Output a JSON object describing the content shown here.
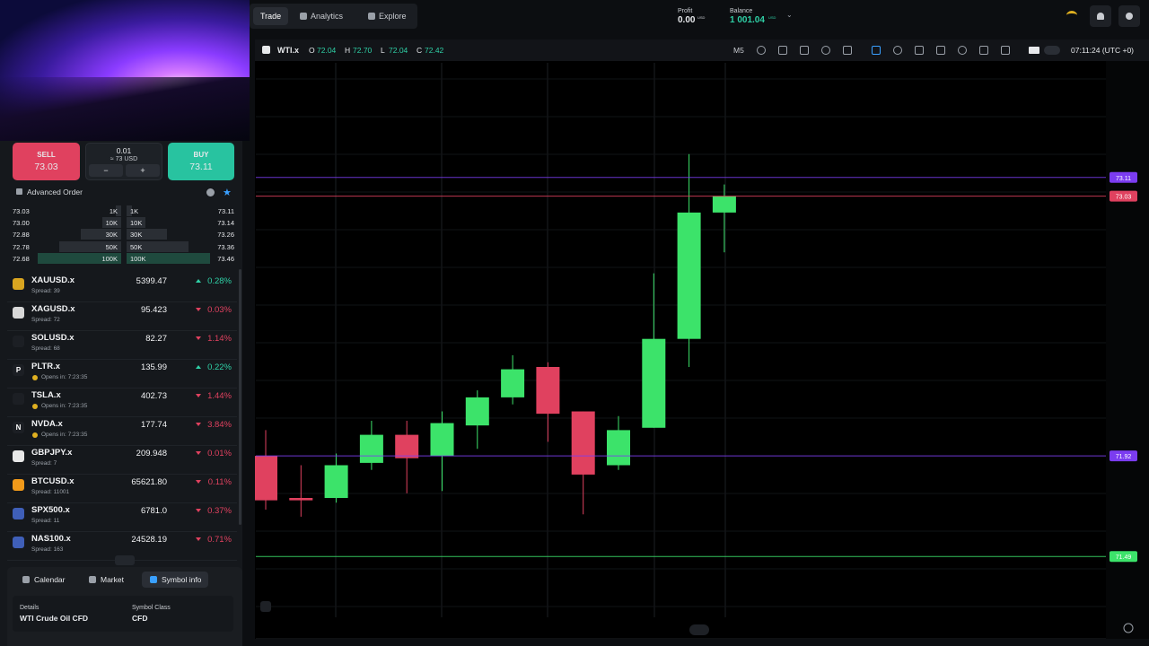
{
  "nav": {
    "tabs": [
      "Trade",
      "Analytics",
      "Explore"
    ],
    "profit": {
      "label": "Profit",
      "value": "0.00",
      "currency": "USD"
    },
    "balance": {
      "label": "Balance",
      "value": "1 001.04",
      "currency": "USD"
    }
  },
  "trade_panel": {
    "sell": {
      "label": "SELL",
      "price": "73.03"
    },
    "volume": "0.01",
    "volume_usd": "≈ 73 USD",
    "minus": "−",
    "plus": "+",
    "buy": {
      "label": "BUY",
      "price": "73.11"
    },
    "advanced_order": "Advanced Order"
  },
  "order_book": [
    [
      "73.03",
      "1K",
      "1K",
      "73.11"
    ],
    [
      "73.00",
      "10K",
      "10K",
      "73.14"
    ],
    [
      "72.88",
      "30K",
      "30K",
      "73.26"
    ],
    [
      "72.78",
      "50K",
      "50K",
      "73.36"
    ],
    [
      "72.68",
      "100K",
      "100K",
      "73.46"
    ]
  ],
  "watchlist": [
    {
      "symbol": "XAUUSD.x",
      "sub": "Spread: 39",
      "price": "5399.47",
      "change": "0.28%",
      "direction": "up",
      "icon_color": "#d9a520"
    },
    {
      "symbol": "XAGUSD.x",
      "sub": "Spread: 72",
      "price": "95.423",
      "change": "0.03%",
      "direction": "down",
      "icon_color": "#d8d8d8"
    },
    {
      "symbol": "SOLUSD.x",
      "sub": "Spread: 68",
      "price": "82.27",
      "change": "1.14%",
      "direction": "down",
      "icon_color": "#1c1f24"
    },
    {
      "icon": "P",
      "symbol": "PLTR.x",
      "sub": "Opens in: 7:23:35",
      "price": "135.99",
      "change": "0.22%",
      "direction": "up",
      "status": "closed",
      "icon_color": "#1c1f24"
    },
    {
      "symbol": "TSLA.x",
      "sub": "Opens in: 7:23:35",
      "price": "402.73",
      "change": "1.44%",
      "direction": "down",
      "status": "closed",
      "icon_color": "#1c1f24"
    },
    {
      "icon": "N",
      "symbol": "NVDA.x",
      "sub": "Opens in: 7:23:35",
      "price": "177.74",
      "change": "3.84%",
      "direction": "down",
      "status": "closed",
      "icon_color": "#1c1f24"
    },
    {
      "symbol": "GBPJPY.x",
      "sub": "Spread: 7",
      "price": "209.948",
      "change": "0.01%",
      "direction": "down",
      "icon_color": "#e8e8e8"
    },
    {
      "symbol": "BTCUSD.x",
      "sub": "Spread: 11001",
      "price": "65621.80",
      "change": "0.11%",
      "direction": "down",
      "icon_color": "#f29a1a"
    },
    {
      "symbol": "SPX500.x",
      "sub": "Spread: 11",
      "price": "6781.0",
      "change": "0.37%",
      "direction": "down",
      "icon_color": "#3f5fb8"
    },
    {
      "symbol": "NAS100.x",
      "sub": "Spread: 163",
      "price": "24528.19",
      "change": "0.71%",
      "direction": "down",
      "icon_color": "#3f5fb8"
    }
  ],
  "bottom_panel": {
    "tabs": [
      "Calendar",
      "Market",
      "Symbol info"
    ],
    "details_label": "Details",
    "details_value": "WTI Crude Oil CFD",
    "class_label": "Symbol Class",
    "class_value": "CFD"
  },
  "chart": {
    "symbol": "WTI.x",
    "ohlc": [
      {
        "label": "O",
        "value": "72.04"
      },
      {
        "label": "H",
        "value": "72.70"
      },
      {
        "label": "L",
        "value": "72.04"
      },
      {
        "label": "C",
        "value": "72.42"
      }
    ],
    "timeframe": "M5",
    "time": "07:11:24 (UTC +0)",
    "ylim": [
      71.23,
      73.6
    ],
    "up_color": "#3ce36a",
    "down_color": "#e0415f",
    "price_lines": [
      {
        "value": 73.11,
        "color": "#7b3cf0"
      },
      {
        "value": 73.03,
        "color": "#e0415f"
      },
      {
        "value": 71.92,
        "color": "#7b3cf0"
      },
      {
        "value": 71.49,
        "color": "#3ce36a"
      }
    ],
    "candles": [
      {
        "open": 71.92,
        "high": 72.03,
        "low": 71.69,
        "close": 71.73
      },
      {
        "open": 71.74,
        "high": 71.88,
        "low": 71.66,
        "close": 71.73
      },
      {
        "open": 71.74,
        "high": 71.93,
        "low": 71.72,
        "close": 71.88
      },
      {
        "open": 71.89,
        "high": 72.07,
        "low": 71.86,
        "close": 72.01
      },
      {
        "open": 72.01,
        "high": 72.07,
        "low": 71.76,
        "close": 71.91
      },
      {
        "open": 71.92,
        "high": 72.11,
        "low": 71.77,
        "close": 72.06
      },
      {
        "open": 72.05,
        "high": 72.2,
        "low": 71.95,
        "close": 72.17
      },
      {
        "open": 72.17,
        "high": 72.35,
        "low": 72.14,
        "close": 72.29
      },
      {
        "open": 72.3,
        "high": 72.32,
        "low": 71.98,
        "close": 72.1
      },
      {
        "open": 72.11,
        "high": 72.11,
        "low": 71.67,
        "close": 71.84
      },
      {
        "open": 71.88,
        "high": 72.09,
        "low": 71.86,
        "close": 72.03
      },
      {
        "open": 72.04,
        "high": 72.7,
        "low": 72.04,
        "close": 72.42
      },
      {
        "open": 72.42,
        "high": 73.21,
        "low": 72.3,
        "close": 72.96
      },
      {
        "open": 72.96,
        "high": 73.08,
        "low": 72.79,
        "close": 73.03
      }
    ]
  }
}
